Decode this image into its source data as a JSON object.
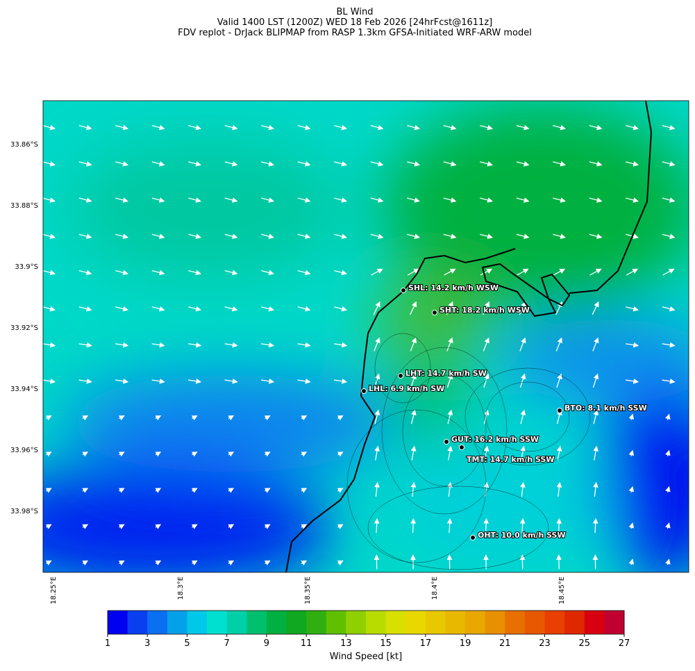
{
  "header": {
    "title": [
      "BL Wind",
      "Valid 1400 LST (1200Z) WED 18 Feb 2026 [24hrFcst@1611z]",
      "FDV replot - DrJack BLIPMAP from RASP 1.3km GFSA-Initiated WRF-ARW model"
    ]
  },
  "map": {
    "lat_labels": [
      "33.86°S",
      "33.88°S",
      "33.9°S",
      "33.92°S",
      "33.94°S",
      "33.96°S",
      "33.98°S"
    ],
    "lon_labels": [
      "18.25°E",
      "18.3°E",
      "18.35°E",
      "18.4°E",
      "18.45°E"
    ],
    "stations": [
      "SHL: 14.2 km/h WSW",
      "SHT: 18.2 km/h WSW",
      "LHT: 14.7 km/h SW",
      "LHL: 6.9 km/h SW",
      "BTO: 8.1 km/h SSW",
      "GUT: 16.2 km/h SSW",
      "TMT: 14.7 km/h SSW",
      "OHT: 10.0 km/h SSW"
    ]
  },
  "colorbar": {
    "label": "Wind Speed [kt]",
    "lim": [
      1,
      27
    ],
    "ticks": [
      1,
      3,
      5,
      7,
      9,
      11,
      13,
      15,
      17,
      19,
      21,
      23,
      25,
      27
    ],
    "colors": [
      "#0000f0",
      "#0a3ff0",
      "#0a6ff0",
      "#04a0e8",
      "#00c8e8",
      "#00e0d0",
      "#00d0a8",
      "#00c070",
      "#00b040",
      "#10a820",
      "#30b010",
      "#60c000",
      "#90d000",
      "#b8dc00",
      "#d8e000",
      "#e8d800",
      "#e8c800",
      "#e8b800",
      "#e8a800",
      "#e89000",
      "#e87000",
      "#e85800",
      "#e84000",
      "#e02800",
      "#d80010",
      "#c00030"
    ]
  }
}
